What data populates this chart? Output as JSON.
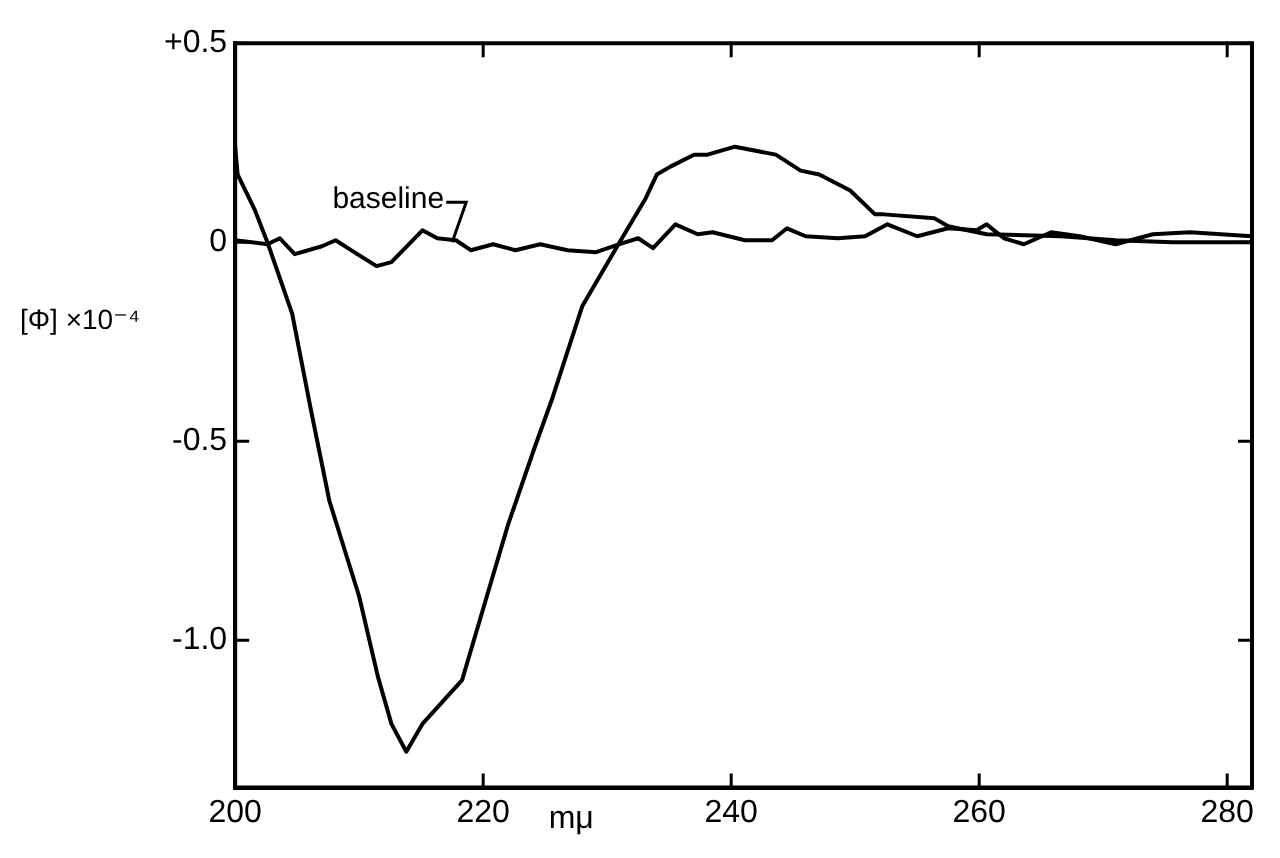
{
  "chart_data": {
    "type": "line",
    "xlabel": "mμ",
    "ylabel": "[Φ] ×10⁻⁴",
    "xlim": [
      200,
      282
    ],
    "xticks": [
      200,
      220,
      240,
      260,
      280
    ],
    "ylim": [
      -1.37,
      0.5
    ],
    "yticks": [
      {
        "value": 0.5,
        "label": "+0.5"
      },
      0,
      {
        "value": -0.5,
        "label": "-0.5"
      },
      {
        "value": -1,
        "label": "-1.0"
      }
    ],
    "grid": false,
    "legend": false,
    "marker": "none",
    "line_style": "solid",
    "annotations": [
      {
        "text": "baseline",
        "x": 217.5,
        "y": 0
      }
    ],
    "series": [
      {
        "color": "#000000",
        "x": [
          200,
          200.2,
          201.6,
          202.6,
          204.6,
          206.1,
          207.6,
          210,
          211.5,
          212.6,
          213.8,
          215.1,
          218.3,
          220.1,
          222,
          224.1,
          225.6,
          228,
          231,
          233.1,
          234,
          235.1,
          237,
          238.1,
          240.3,
          243.6,
          245.6,
          247.1,
          249.6,
          251.6,
          252.3,
          256.4,
          257.5,
          260.6,
          266.6,
          271,
          275.6,
          282
        ],
        "values": [
          0.24,
          0.17,
          0.08,
          0,
          -0.18,
          -0.42,
          -0.65,
          -0.89,
          -1.09,
          -1.21,
          -1.28,
          -1.21,
          -1.1,
          -0.91,
          -0.71,
          -0.52,
          -0.39,
          -0.16,
          0,
          0.11,
          0.17,
          0.19,
          0.22,
          0.22,
          0.24,
          0.22,
          0.18,
          0.17,
          0.13,
          0.07,
          0.07,
          0.06,
          0.04,
          0.02,
          0.015,
          0.005,
          0,
          0
        ]
      },
      {
        "color": "#000000",
        "x": [
          200,
          202.6,
          203.6,
          204.8,
          207,
          208.1,
          209.6,
          211.4,
          212.6,
          215.1,
          216.3,
          217.8,
          219,
          220.8,
          222.6,
          224.6,
          226.8,
          229.1,
          231,
          232.5,
          233.7,
          235.5,
          237.3,
          238.5,
          241.1,
          243.3,
          244.5,
          246,
          248.6,
          250.8,
          252.6,
          255,
          257.5,
          259.8,
          260.6,
          262,
          263.6,
          265.8,
          268.1,
          271,
          274,
          277,
          282
        ],
        "values": [
          0.005,
          -0.005,
          0.01,
          -0.03,
          -0.01,
          0.005,
          -0.025,
          -0.06,
          -0.05,
          0.03,
          0.01,
          0.005,
          -0.02,
          -0.005,
          -0.02,
          -0.005,
          -0.02,
          -0.025,
          -0.005,
          0.01,
          -0.015,
          0.045,
          0.02,
          0.025,
          0.005,
          0.005,
          0.035,
          0.015,
          0.01,
          0.015,
          0.045,
          0.015,
          0.035,
          0.03,
          0.045,
          0.01,
          -0.005,
          0.025,
          0.015,
          -0.005,
          0.02,
          0.025,
          0.015
        ]
      }
    ]
  }
}
